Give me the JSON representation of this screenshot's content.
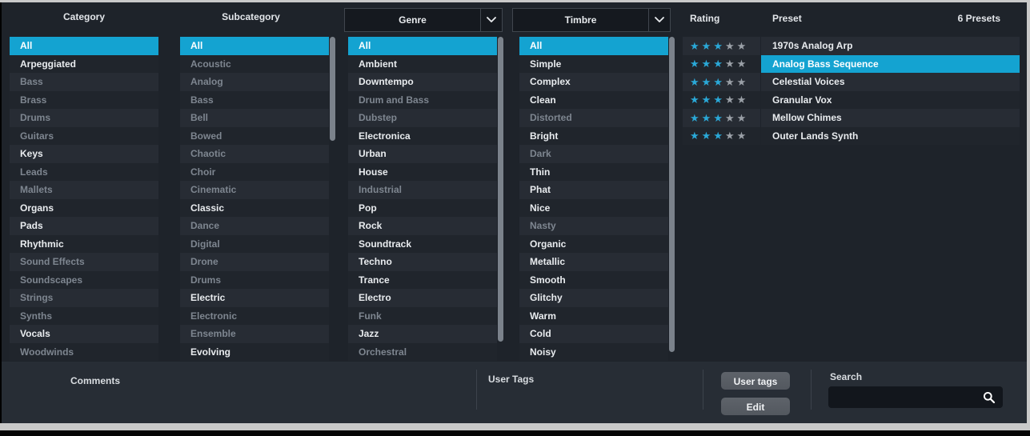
{
  "header": {
    "category": "Category",
    "subcategory": "Subcategory",
    "genre": "Genre",
    "timbre": "Timbre",
    "rating": "Rating",
    "preset": "Preset",
    "preset_count": "6 Presets"
  },
  "lists": {
    "category": [
      {
        "label": "All",
        "selected": true,
        "dim": false
      },
      {
        "label": "Arpeggiated",
        "dim": false
      },
      {
        "label": "Bass",
        "dim": true
      },
      {
        "label": "Brass",
        "dim": true
      },
      {
        "label": "Drums",
        "dim": true
      },
      {
        "label": "Guitars",
        "dim": true
      },
      {
        "label": "Keys",
        "dim": false
      },
      {
        "label": "Leads",
        "dim": true
      },
      {
        "label": "Mallets",
        "dim": true
      },
      {
        "label": "Organs",
        "dim": false
      },
      {
        "label": "Pads",
        "dim": false
      },
      {
        "label": "Rhythmic",
        "dim": false
      },
      {
        "label": "Sound Effects",
        "dim": true
      },
      {
        "label": "Soundscapes",
        "dim": true
      },
      {
        "label": "Strings",
        "dim": true
      },
      {
        "label": "Synths",
        "dim": true
      },
      {
        "label": "Vocals",
        "dim": false
      },
      {
        "label": "Woodwinds",
        "dim": true
      }
    ],
    "subcategory": [
      {
        "label": "All",
        "selected": true,
        "dim": false
      },
      {
        "label": "Acoustic",
        "dim": true
      },
      {
        "label": "Analog",
        "dim": true
      },
      {
        "label": "Bass",
        "dim": true
      },
      {
        "label": "Bell",
        "dim": true
      },
      {
        "label": "Bowed",
        "dim": true
      },
      {
        "label": "Chaotic",
        "dim": true
      },
      {
        "label": "Choir",
        "dim": true
      },
      {
        "label": "Cinematic",
        "dim": true
      },
      {
        "label": "Classic",
        "dim": false
      },
      {
        "label": "Dance",
        "dim": true
      },
      {
        "label": "Digital",
        "dim": true
      },
      {
        "label": "Drone",
        "dim": true
      },
      {
        "label": "Drums",
        "dim": true
      },
      {
        "label": "Electric",
        "dim": false
      },
      {
        "label": "Electronic",
        "dim": true
      },
      {
        "label": "Ensemble",
        "dim": true
      },
      {
        "label": "Evolving",
        "dim": false
      }
    ],
    "genre": [
      {
        "label": "All",
        "selected": true,
        "dim": false
      },
      {
        "label": "Ambient",
        "dim": false
      },
      {
        "label": "Downtempo",
        "dim": false
      },
      {
        "label": "Drum and Bass",
        "dim": true
      },
      {
        "label": "Dubstep",
        "dim": true
      },
      {
        "label": "Electronica",
        "dim": false
      },
      {
        "label": "Urban",
        "dim": false
      },
      {
        "label": "House",
        "dim": false
      },
      {
        "label": "Industrial",
        "dim": true
      },
      {
        "label": "Pop",
        "dim": false
      },
      {
        "label": "Rock",
        "dim": false
      },
      {
        "label": "Soundtrack",
        "dim": false
      },
      {
        "label": "Techno",
        "dim": false
      },
      {
        "label": "Trance",
        "dim": false
      },
      {
        "label": "Electro",
        "dim": false
      },
      {
        "label": "Funk",
        "dim": true
      },
      {
        "label": "Jazz",
        "dim": false
      },
      {
        "label": "Orchestral",
        "dim": true
      }
    ],
    "timbre": [
      {
        "label": "All",
        "selected": true,
        "dim": false
      },
      {
        "label": "Simple",
        "dim": false
      },
      {
        "label": "Complex",
        "dim": false
      },
      {
        "label": "Clean",
        "dim": false
      },
      {
        "label": "Distorted",
        "dim": true
      },
      {
        "label": "Bright",
        "dim": false
      },
      {
        "label": "Dark",
        "dim": true
      },
      {
        "label": "Thin",
        "dim": false
      },
      {
        "label": "Phat",
        "dim": false
      },
      {
        "label": "Nice",
        "dim": false
      },
      {
        "label": "Nasty",
        "dim": true
      },
      {
        "label": "Organic",
        "dim": false
      },
      {
        "label": "Metallic",
        "dim": false
      },
      {
        "label": "Smooth",
        "dim": false
      },
      {
        "label": "Glitchy",
        "dim": false
      },
      {
        "label": "Warm",
        "dim": false
      },
      {
        "label": "Cold",
        "dim": false
      },
      {
        "label": "Noisy",
        "dim": false
      }
    ]
  },
  "presets": [
    {
      "name": "1970s Analog Arp",
      "rating": 3,
      "max_rating": 5,
      "selected": false
    },
    {
      "name": "Analog Bass Sequence",
      "rating": 3,
      "max_rating": 5,
      "selected": true
    },
    {
      "name": "Celestial Voices",
      "rating": 3,
      "max_rating": 5,
      "selected": false
    },
    {
      "name": "Granular Vox",
      "rating": 3,
      "max_rating": 5,
      "selected": false
    },
    {
      "name": "Mellow Chimes",
      "rating": 3,
      "max_rating": 5,
      "selected": false
    },
    {
      "name": "Outer Lands Synth",
      "rating": 3,
      "max_rating": 5,
      "selected": false
    }
  ],
  "bottom": {
    "comments_label": "Comments",
    "user_tags_label": "User Tags",
    "user_tags_button": "User tags",
    "edit_button": "Edit",
    "search_label": "Search",
    "search_value": ""
  },
  "icons": {
    "genre_dropdown": "chevron-down-icon",
    "timbre_dropdown": "chevron-down-icon",
    "search": "magnifier-icon",
    "rating": "star-icon"
  },
  "colors": {
    "selection_blue": "#14a3d1",
    "star_on": "#2aa8d7",
    "star_off": "#9aa0a7",
    "row_light": "#272c34",
    "row_dark": "#20252c",
    "panel": "#1e232a",
    "bottom_bar": "#272d35"
  }
}
